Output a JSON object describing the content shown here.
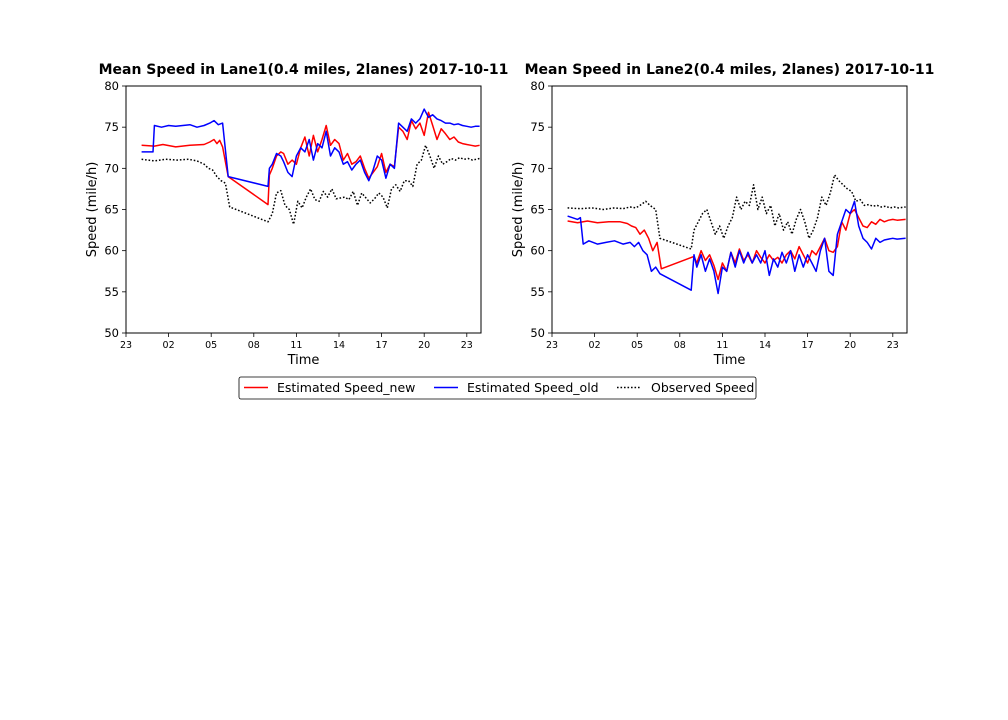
{
  "chart_data": [
    {
      "type": "line",
      "title": "Mean Speed in Lane1(0.4 miles, 2lanes) 2017-10-11",
      "xlabel": "Time",
      "ylabel": "Speed (mile/h)",
      "xlim": [
        23,
        48
      ],
      "ylim": [
        50,
        80
      ],
      "xticks": [
        23,
        26,
        29,
        32,
        35,
        38,
        41,
        44,
        47
      ],
      "xtick_labels": [
        "23",
        "02",
        "05",
        "08",
        "11",
        "14",
        "17",
        "20",
        "23"
      ],
      "yticks": [
        50,
        55,
        60,
        65,
        70,
        75,
        80
      ],
      "grid": false,
      "series": [
        {
          "name": "Estimated Speed_new",
          "color": "#ff0000",
          "style": "solid",
          "x": [
            24.1,
            25.0,
            25.6,
            26.5,
            27.5,
            28.5,
            28.9,
            29.2,
            29.4,
            29.6,
            29.8,
            30.2,
            33.0,
            33.1,
            33.3,
            33.6,
            33.9,
            34.1,
            34.4,
            34.7,
            35.0,
            35.3,
            35.6,
            35.9,
            36.2,
            36.5,
            36.8,
            37.1,
            37.4,
            37.7,
            38.0,
            38.3,
            38.6,
            38.9,
            39.2,
            39.5,
            39.8,
            40.1,
            40.4,
            40.7,
            41.0,
            41.3,
            41.6,
            41.9,
            42.2,
            42.5,
            42.8,
            43.1,
            43.4,
            43.7,
            44.0,
            44.3,
            44.6,
            44.9,
            45.2,
            45.5,
            45.8,
            46.1,
            46.4,
            46.7,
            47.0,
            47.3,
            47.6,
            47.9
          ],
          "y": [
            72.8,
            72.7,
            72.9,
            72.6,
            72.8,
            72.9,
            73.2,
            73.5,
            73.0,
            73.4,
            72.6,
            69.0,
            65.6,
            69.2,
            70.0,
            71.5,
            72.0,
            71.8,
            70.5,
            71.0,
            70.5,
            72.5,
            73.8,
            71.5,
            74.0,
            72.0,
            73.5,
            75.2,
            72.8,
            73.5,
            73.0,
            71.0,
            71.8,
            70.5,
            70.8,
            71.5,
            70.0,
            68.8,
            69.5,
            70.2,
            71.8,
            69.5,
            70.5,
            70.2,
            75.0,
            74.5,
            73.5,
            75.8,
            74.8,
            75.5,
            74.0,
            76.8,
            75.2,
            73.5,
            74.8,
            74.2,
            73.5,
            73.8,
            73.2,
            73.0,
            72.9,
            72.8,
            72.7,
            72.8
          ]
        },
        {
          "name": "Estimated Speed_old",
          "color": "#0000ff",
          "style": "solid",
          "x": [
            24.1,
            24.9,
            25.0,
            25.5,
            26.0,
            26.5,
            27.0,
            27.5,
            28.0,
            28.5,
            28.9,
            29.2,
            29.5,
            29.8,
            30.2,
            33.0,
            33.1,
            33.3,
            33.6,
            33.9,
            34.1,
            34.4,
            34.7,
            35.0,
            35.3,
            35.6,
            35.9,
            36.2,
            36.5,
            36.8,
            37.1,
            37.4,
            37.7,
            38.0,
            38.3,
            38.6,
            38.9,
            39.2,
            39.5,
            39.8,
            40.1,
            40.4,
            40.7,
            41.0,
            41.3,
            41.6,
            41.9,
            42.2,
            42.5,
            42.8,
            43.1,
            43.4,
            43.7,
            44.0,
            44.3,
            44.6,
            44.9,
            45.2,
            45.5,
            45.8,
            46.1,
            46.4,
            46.7,
            47.0,
            47.3,
            47.6,
            47.9
          ],
          "y": [
            72.0,
            72.0,
            75.2,
            75.0,
            75.2,
            75.1,
            75.2,
            75.3,
            75.0,
            75.2,
            75.5,
            75.8,
            75.3,
            75.5,
            69.0,
            67.8,
            70.0,
            70.5,
            71.8,
            71.5,
            70.8,
            69.5,
            69.0,
            71.5,
            72.5,
            72.0,
            73.5,
            71.0,
            73.0,
            72.5,
            74.5,
            71.5,
            72.5,
            72.0,
            70.5,
            70.8,
            69.8,
            70.5,
            71.0,
            69.5,
            68.5,
            69.8,
            71.5,
            71.0,
            68.8,
            70.5,
            70.0,
            75.5,
            75.0,
            74.5,
            76.0,
            75.5,
            76.0,
            77.2,
            76.2,
            76.5,
            76.0,
            75.8,
            75.5,
            75.5,
            75.3,
            75.4,
            75.2,
            75.1,
            75.0,
            75.1,
            75.1
          ]
        },
        {
          "name": "Observed Speed",
          "color": "#000000",
          "style": "dotted",
          "x": [
            24.1,
            25.0,
            25.8,
            26.6,
            27.4,
            28.0,
            28.5,
            28.8,
            29.1,
            29.4,
            29.7,
            30.0,
            30.3,
            33.0,
            33.3,
            33.6,
            33.9,
            34.2,
            34.5,
            34.8,
            35.1,
            35.4,
            35.7,
            36.0,
            36.3,
            36.6,
            36.9,
            37.2,
            37.5,
            37.8,
            38.1,
            38.4,
            38.7,
            39.0,
            39.3,
            39.6,
            39.9,
            40.2,
            40.5,
            40.8,
            41.1,
            41.4,
            41.7,
            42.0,
            42.3,
            42.6,
            42.9,
            43.2,
            43.5,
            43.8,
            44.1,
            44.4,
            44.7,
            45.0,
            45.3,
            45.6,
            45.9,
            46.2,
            46.5,
            46.8,
            47.1,
            47.4,
            47.9
          ],
          "y": [
            71.1,
            70.9,
            71.1,
            71.0,
            71.1,
            70.9,
            70.5,
            70.0,
            69.8,
            69.0,
            68.5,
            68.2,
            65.3,
            63.5,
            64.5,
            67.0,
            67.3,
            65.5,
            65.0,
            63.2,
            66.0,
            65.2,
            66.5,
            67.5,
            66.2,
            66.0,
            67.2,
            66.5,
            67.5,
            66.3,
            66.4,
            66.5,
            66.2,
            67.2,
            65.5,
            67.0,
            66.4,
            65.8,
            66.3,
            67.0,
            66.5,
            65.2,
            67.5,
            68.0,
            67.2,
            68.5,
            68.5,
            67.8,
            70.5,
            71.0,
            72.8,
            71.5,
            70.0,
            71.5,
            70.5,
            70.8,
            71.2,
            71.0,
            71.3,
            71.1,
            71.2,
            71.0,
            71.2
          ]
        }
      ]
    },
    {
      "type": "line",
      "title": "Mean Speed in Lane2(0.4 miles, 2lanes) 2017-10-11",
      "xlabel": "Time",
      "ylabel": "Speed (mile/h)",
      "xlim": [
        23,
        48
      ],
      "ylim": [
        50,
        80
      ],
      "xticks": [
        23,
        26,
        29,
        32,
        35,
        38,
        41,
        44,
        47
      ],
      "xtick_labels": [
        "23",
        "02",
        "05",
        "08",
        "11",
        "14",
        "17",
        "20",
        "23"
      ],
      "yticks": [
        50,
        55,
        60,
        65,
        70,
        75,
        80
      ],
      "grid": false,
      "series": [
        {
          "name": "Estimated Speed_new",
          "color": "#ff0000",
          "style": "solid",
          "x": [
            24.1,
            24.8,
            25.5,
            26.2,
            27.0,
            27.8,
            28.3,
            28.6,
            28.9,
            29.2,
            29.5,
            29.8,
            30.1,
            30.4,
            30.7,
            33.0,
            33.2,
            33.5,
            33.8,
            34.1,
            34.4,
            34.7,
            35.0,
            35.3,
            35.6,
            35.9,
            36.2,
            36.5,
            36.8,
            37.1,
            37.4,
            37.7,
            38.0,
            38.3,
            38.6,
            38.9,
            39.2,
            39.5,
            39.8,
            40.1,
            40.4,
            40.7,
            41.0,
            41.3,
            41.6,
            41.9,
            42.2,
            42.5,
            42.8,
            43.1,
            43.4,
            43.7,
            44.0,
            44.3,
            44.6,
            44.9,
            45.2,
            45.5,
            45.8,
            46.1,
            46.4,
            46.7,
            47.0,
            47.3,
            47.9
          ],
          "y": [
            63.6,
            63.4,
            63.6,
            63.4,
            63.5,
            63.5,
            63.3,
            63.0,
            62.8,
            62.0,
            62.5,
            61.5,
            60.0,
            61.0,
            57.8,
            59.3,
            58.5,
            60.0,
            58.8,
            59.5,
            58.2,
            56.5,
            58.5,
            57.5,
            59.8,
            58.5,
            60.2,
            58.8,
            59.5,
            58.5,
            60.0,
            59.2,
            58.5,
            59.5,
            58.8,
            59.2,
            58.5,
            59.5,
            60.0,
            59.0,
            60.5,
            59.5,
            58.5,
            60.0,
            59.5,
            60.5,
            61.5,
            60.0,
            59.8,
            60.5,
            63.5,
            62.5,
            64.5,
            65.0,
            64.0,
            63.0,
            62.8,
            63.5,
            63.2,
            63.8,
            63.5,
            63.7,
            63.8,
            63.7,
            63.8
          ]
        },
        {
          "name": "Estimated Speed_old",
          "color": "#0000ff",
          "style": "solid",
          "x": [
            24.1,
            24.8,
            25.0,
            25.2,
            25.6,
            26.2,
            26.8,
            27.4,
            28.0,
            28.5,
            28.8,
            29.1,
            29.4,
            29.7,
            30.0,
            30.3,
            30.6,
            32.8,
            33.0,
            33.2,
            33.5,
            33.8,
            34.1,
            34.4,
            34.7,
            35.0,
            35.3,
            35.6,
            35.9,
            36.2,
            36.5,
            36.8,
            37.1,
            37.4,
            37.7,
            38.0,
            38.3,
            38.6,
            38.9,
            39.2,
            39.5,
            39.8,
            40.1,
            40.4,
            40.7,
            41.0,
            41.3,
            41.6,
            41.9,
            42.2,
            42.5,
            42.8,
            43.1,
            43.4,
            43.7,
            44.0,
            44.3,
            44.6,
            44.9,
            45.2,
            45.5,
            45.8,
            46.1,
            46.4,
            46.7,
            47.0,
            47.3,
            47.9
          ],
          "y": [
            64.2,
            63.8,
            64.0,
            60.8,
            61.2,
            60.8,
            61.0,
            61.2,
            60.8,
            61.0,
            60.5,
            61.0,
            60.0,
            59.5,
            57.5,
            58.0,
            57.2,
            55.2,
            59.5,
            58.0,
            59.5,
            57.5,
            59.0,
            57.5,
            54.8,
            58.0,
            57.5,
            59.8,
            58.0,
            60.0,
            58.5,
            59.8,
            58.5,
            59.5,
            58.5,
            60.0,
            57.0,
            59.0,
            58.0,
            59.8,
            58.5,
            60.0,
            57.5,
            59.5,
            58.0,
            59.5,
            58.5,
            57.5,
            60.0,
            61.5,
            57.5,
            57.0,
            62.0,
            63.5,
            65.0,
            64.5,
            66.0,
            63.0,
            61.5,
            61.0,
            60.2,
            61.5,
            61.0,
            61.3,
            61.4,
            61.5,
            61.4,
            61.5
          ]
        },
        {
          "name": "Observed Speed",
          "color": "#000000",
          "style": "dotted",
          "x": [
            24.1,
            25.0,
            25.8,
            26.6,
            27.4,
            28.0,
            28.5,
            28.9,
            29.2,
            29.6,
            29.9,
            30.3,
            30.6,
            32.8,
            33.0,
            33.3,
            33.6,
            33.9,
            34.2,
            34.5,
            34.8,
            35.1,
            35.4,
            35.7,
            36.0,
            36.3,
            36.6,
            36.9,
            37.2,
            37.5,
            37.8,
            38.1,
            38.4,
            38.7,
            39.0,
            39.3,
            39.6,
            39.9,
            40.2,
            40.5,
            40.8,
            41.1,
            41.4,
            41.7,
            42.0,
            42.3,
            42.6,
            42.9,
            43.2,
            43.5,
            43.8,
            44.1,
            44.4,
            44.7,
            45.0,
            45.3,
            45.6,
            45.9,
            46.2,
            46.5,
            46.8,
            47.1,
            47.4,
            47.9
          ],
          "y": [
            65.2,
            65.1,
            65.2,
            65.0,
            65.2,
            65.1,
            65.3,
            65.2,
            65.5,
            66.0,
            65.5,
            65.0,
            61.5,
            60.2,
            62.5,
            63.5,
            64.5,
            65.0,
            63.5,
            62.0,
            63.0,
            61.5,
            63.0,
            64.0,
            66.5,
            65.0,
            66.0,
            65.5,
            68.0,
            65.0,
            66.5,
            64.5,
            65.5,
            63.0,
            64.5,
            62.5,
            63.5,
            62.0,
            63.8,
            65.0,
            63.5,
            61.5,
            62.5,
            64.0,
            66.5,
            65.5,
            67.0,
            69.2,
            68.5,
            68.0,
            67.5,
            67.2,
            66.0,
            66.2,
            65.5,
            65.6,
            65.4,
            65.5,
            65.3,
            65.4,
            65.2,
            65.3,
            65.2,
            65.3
          ]
        }
      ]
    }
  ],
  "legend": {
    "items": [
      {
        "label": "Estimated Speed_new",
        "color": "#ff0000",
        "style": "solid"
      },
      {
        "label": "Estimated Speed_old",
        "color": "#0000ff",
        "style": "solid"
      },
      {
        "label": "Observed Speed",
        "color": "#000000",
        "style": "dotted"
      }
    ]
  }
}
